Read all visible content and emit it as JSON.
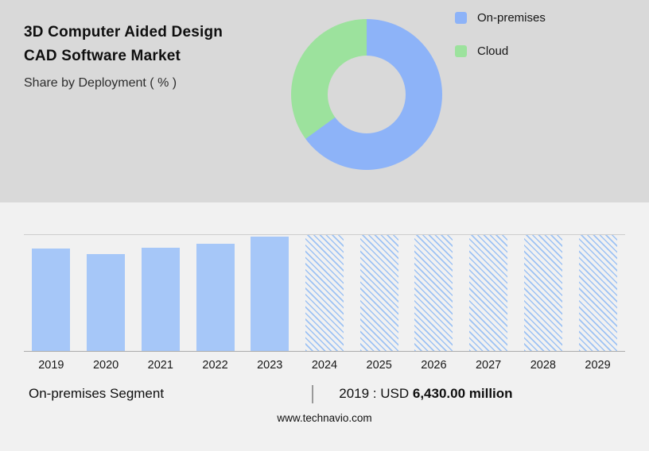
{
  "header": {
    "title_line1": "3D Computer Aided Design",
    "title_line2": "CAD Software Market",
    "subtitle": "Share by Deployment ( % )"
  },
  "legend": {
    "items": [
      {
        "label": "On-premises",
        "color": "#8db3f8"
      },
      {
        "label": "Cloud",
        "color": "#9ce29d"
      }
    ]
  },
  "chart_data": [
    {
      "type": "pie",
      "title": "Share by Deployment ( % )",
      "labels": [
        "On-premises",
        "Cloud"
      ],
      "values": [
        65,
        35
      ],
      "colors": [
        "#8db3f8",
        "#9ce29d"
      ],
      "donut": true,
      "legend_position": "right"
    },
    {
      "type": "bar",
      "title": "Market size by year (historic solid, forecast hatched)",
      "categories": [
        "2019",
        "2020",
        "2021",
        "2022",
        "2023",
        "2024",
        "2025",
        "2026",
        "2027",
        "2028",
        "2029"
      ],
      "values": [
        6430,
        6100,
        6500,
        6750,
        7200,
        null,
        null,
        null,
        null,
        null,
        null
      ],
      "forecast": [
        false,
        false,
        false,
        false,
        false,
        true,
        true,
        true,
        true,
        true,
        true
      ],
      "bar_color": "#a6c7f8",
      "ylim": [
        0,
        7300
      ],
      "grid": "top-and-baseline-only",
      "known_point_label": "2019 : USD 6,430.00 million"
    }
  ],
  "footer": {
    "segment_label": "On-premises Segment",
    "divider": "|",
    "value_prefix": "2019 : USD ",
    "value_bold": "6,430.00 million",
    "website": "www.technavio.com"
  }
}
